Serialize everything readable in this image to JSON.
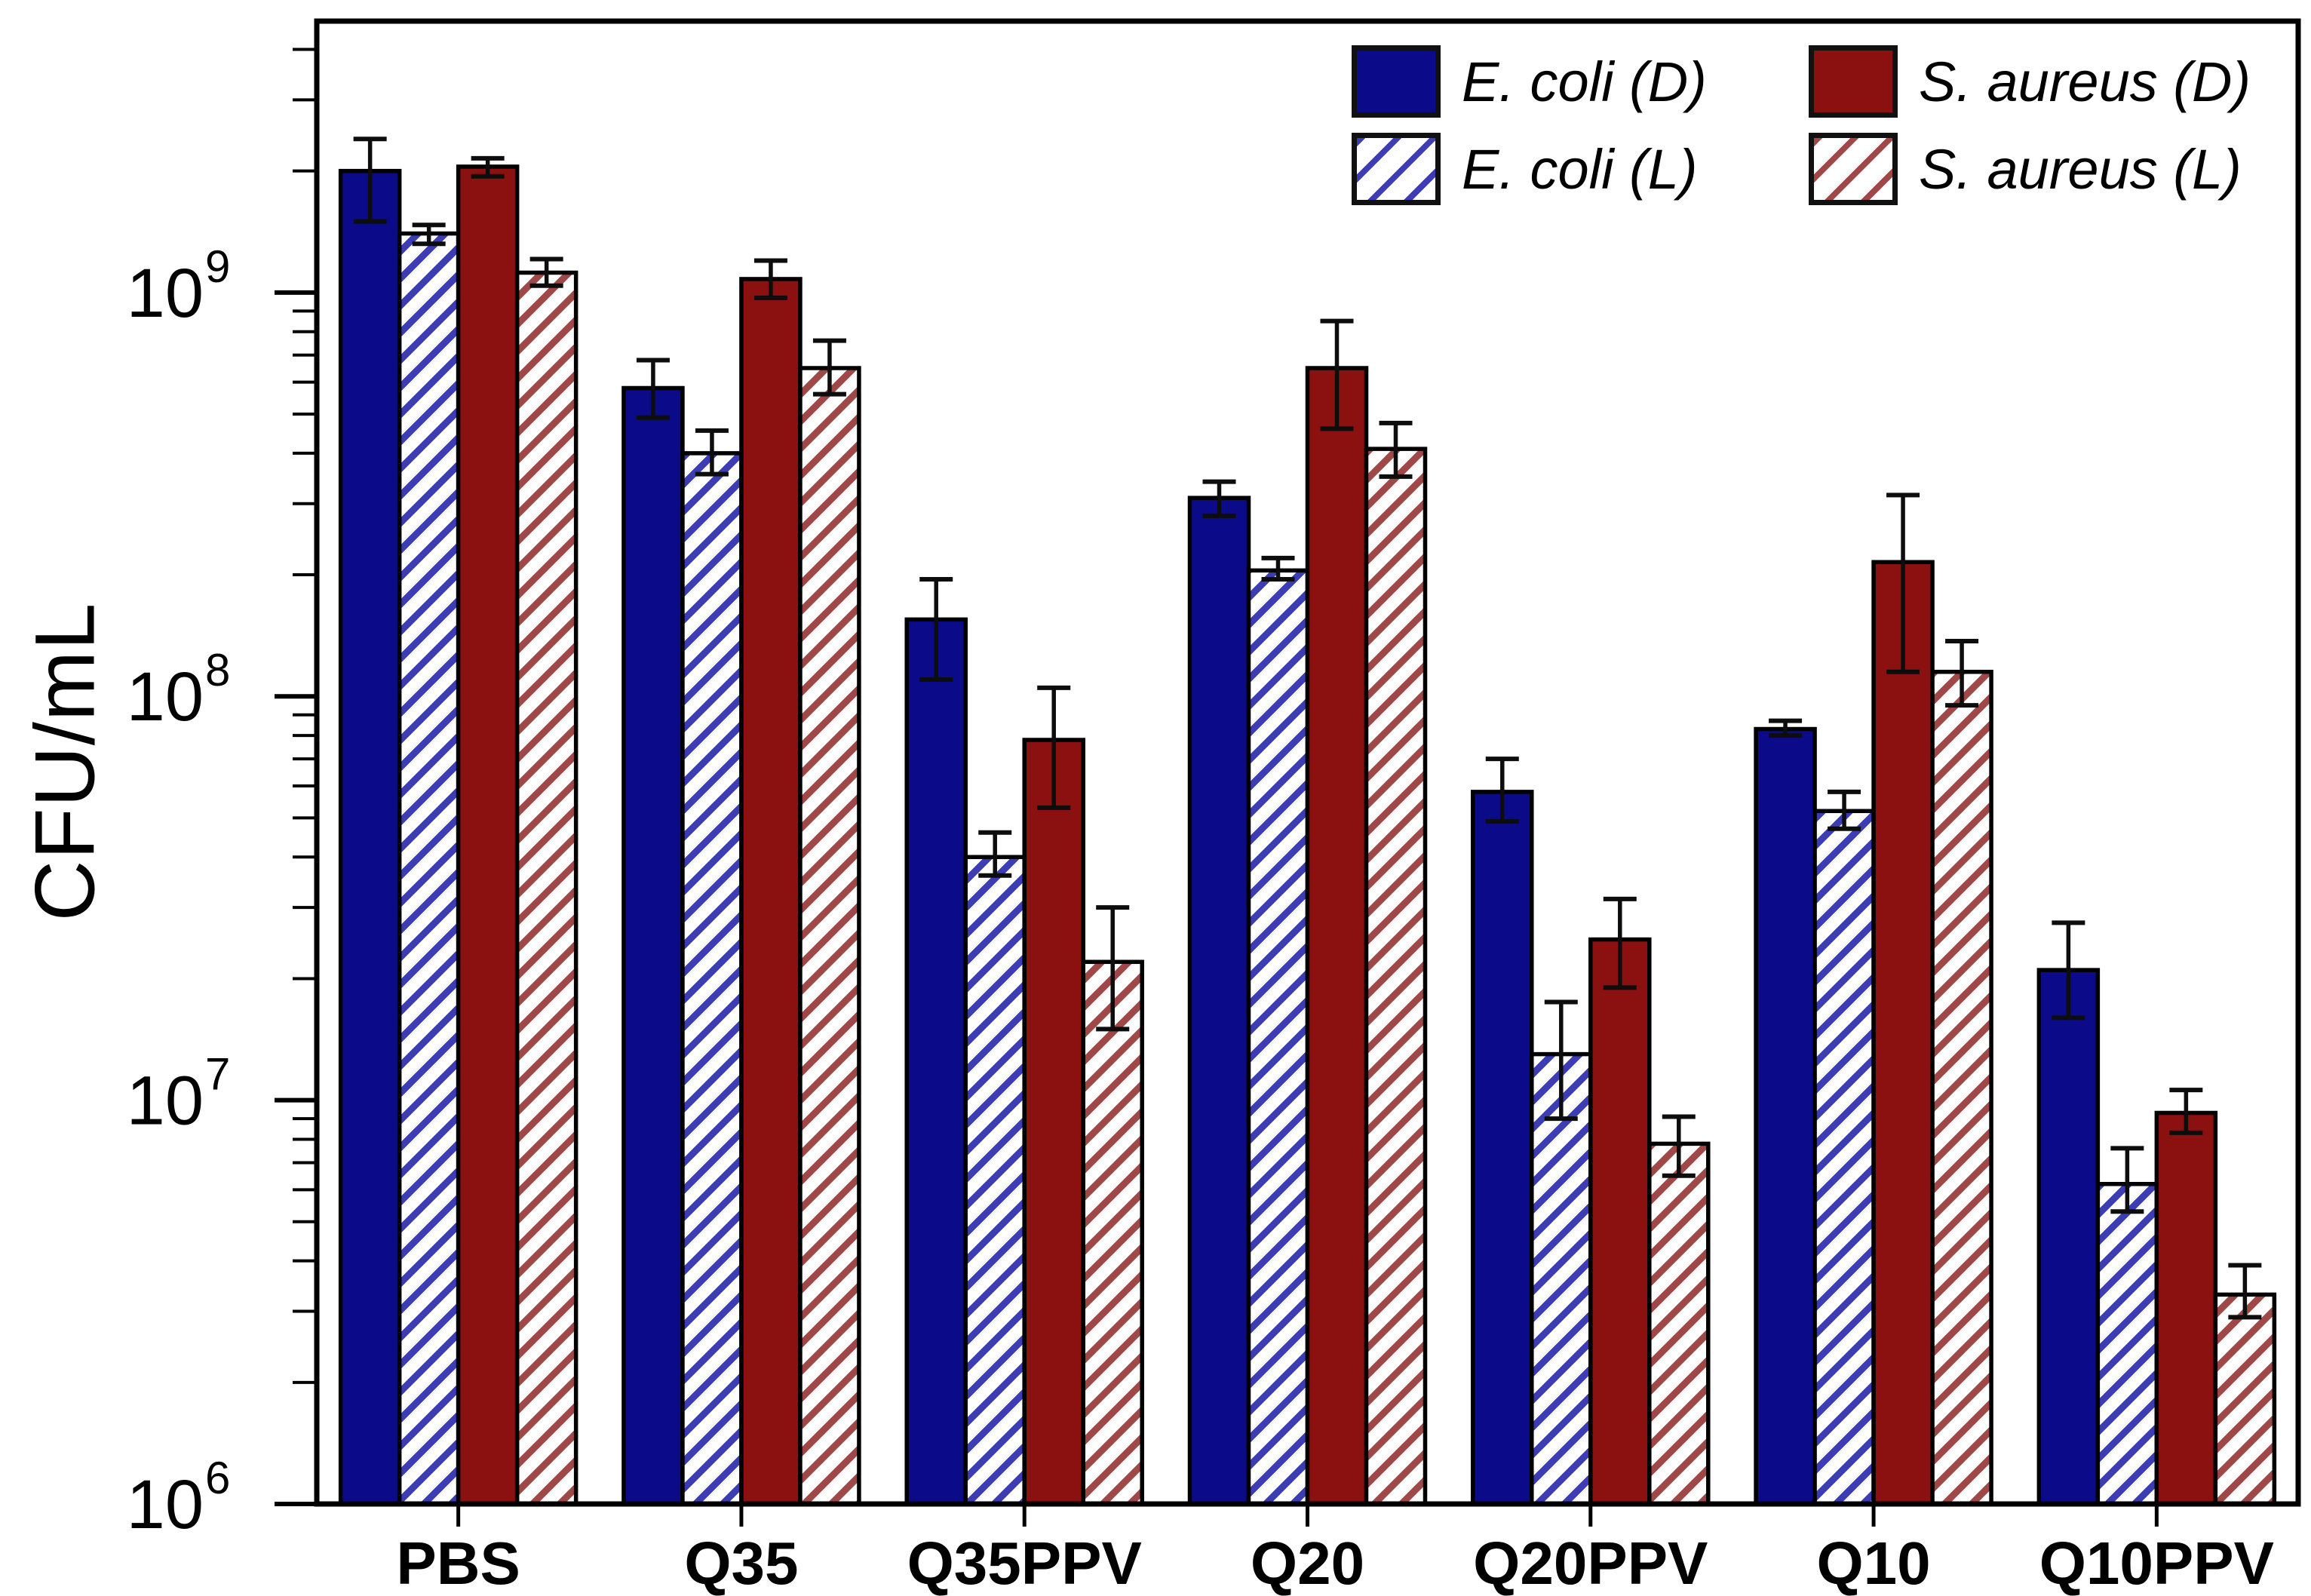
{
  "chart_data": {
    "type": "bar",
    "scale": "log",
    "title": "",
    "xlabel": "",
    "ylabel": "CFU/mL",
    "grid": false,
    "categories": [
      "PBS",
      "Q35",
      "Q35PPV",
      "Q20",
      "Q20PPV",
      "Q10",
      "Q10PPV"
    ],
    "series": [
      {
        "name": "E. coli (D)",
        "style": "solid",
        "color": "#0b0b8a",
        "values": [
          2000000000.0,
          580000000.0,
          155000000.0,
          310000000.0,
          58000000.0,
          83000000.0,
          21000000.0
        ],
        "err_up": [
          400000000.0,
          100000000.0,
          40000000.0,
          30000000.0,
          12000000.0,
          4000000.0,
          6500000.0
        ],
        "err_down": [
          500000000.0,
          90000000.0,
          45000000.0,
          30000000.0,
          9000000.0,
          3000000.0,
          5000000.0
        ]
      },
      {
        "name": "E. coli (L)",
        "style": "hatched",
        "color": "#3c3cb4",
        "values": [
          1400000000.0,
          400000000.0,
          40000000.0,
          205000000.0,
          13000000.0,
          52000000.0,
          6200000.0
        ],
        "err_up": [
          70000000.0,
          55000000.0,
          6000000.0,
          15000000.0,
          4500000.0,
          6000000.0,
          1400000.0
        ],
        "err_down": [
          80000000.0,
          45000000.0,
          4000000.0,
          10000000.0,
          4000000.0,
          5000000.0,
          900000.0
        ]
      },
      {
        "name": "S. aureus (D)",
        "style": "solid",
        "color": "#8b1010",
        "values": [
          2050000000.0,
          1080000000.0,
          78000000.0,
          650000000.0,
          25000000.0,
          215000000.0,
          9300000.0
        ],
        "err_up": [
          100000000.0,
          120000000.0,
          27000000.0,
          200000000.0,
          6500000.0,
          100000000.0,
          1300000.0
        ],
        "err_down": [
          110000000.0,
          110000000.0,
          25000000.0,
          190000000.0,
          6000000.0,
          100000000.0,
          1000000.0
        ]
      },
      {
        "name": "S. aureus (L)",
        "style": "hatched",
        "color": "#a04848",
        "values": [
          1120000000.0,
          650000000.0,
          22000000.0,
          410000000.0,
          7800000.0,
          115000000.0,
          3300000.0
        ],
        "err_up": [
          90000000.0,
          110000000.0,
          8000000.0,
          65000000.0,
          1300000.0,
          22000000.0,
          600000.0
        ],
        "err_down": [
          80000000.0,
          90000000.0,
          7000000.0,
          60000000.0,
          1300000.0,
          20000000.0,
          400000.0
        ]
      }
    ],
    "ylim": [
      1000000.0,
      4700000000.0
    ],
    "y_ticks_exponents": [
      6,
      7,
      8,
      9
    ],
    "legend": {
      "position": "top-right",
      "display_order": [
        0,
        2,
        1,
        3
      ]
    },
    "colors": {
      "axis": "#000000",
      "error_bar": "#0d0d0d",
      "bar_edge": "#000000",
      "background": "#ffffff"
    }
  }
}
